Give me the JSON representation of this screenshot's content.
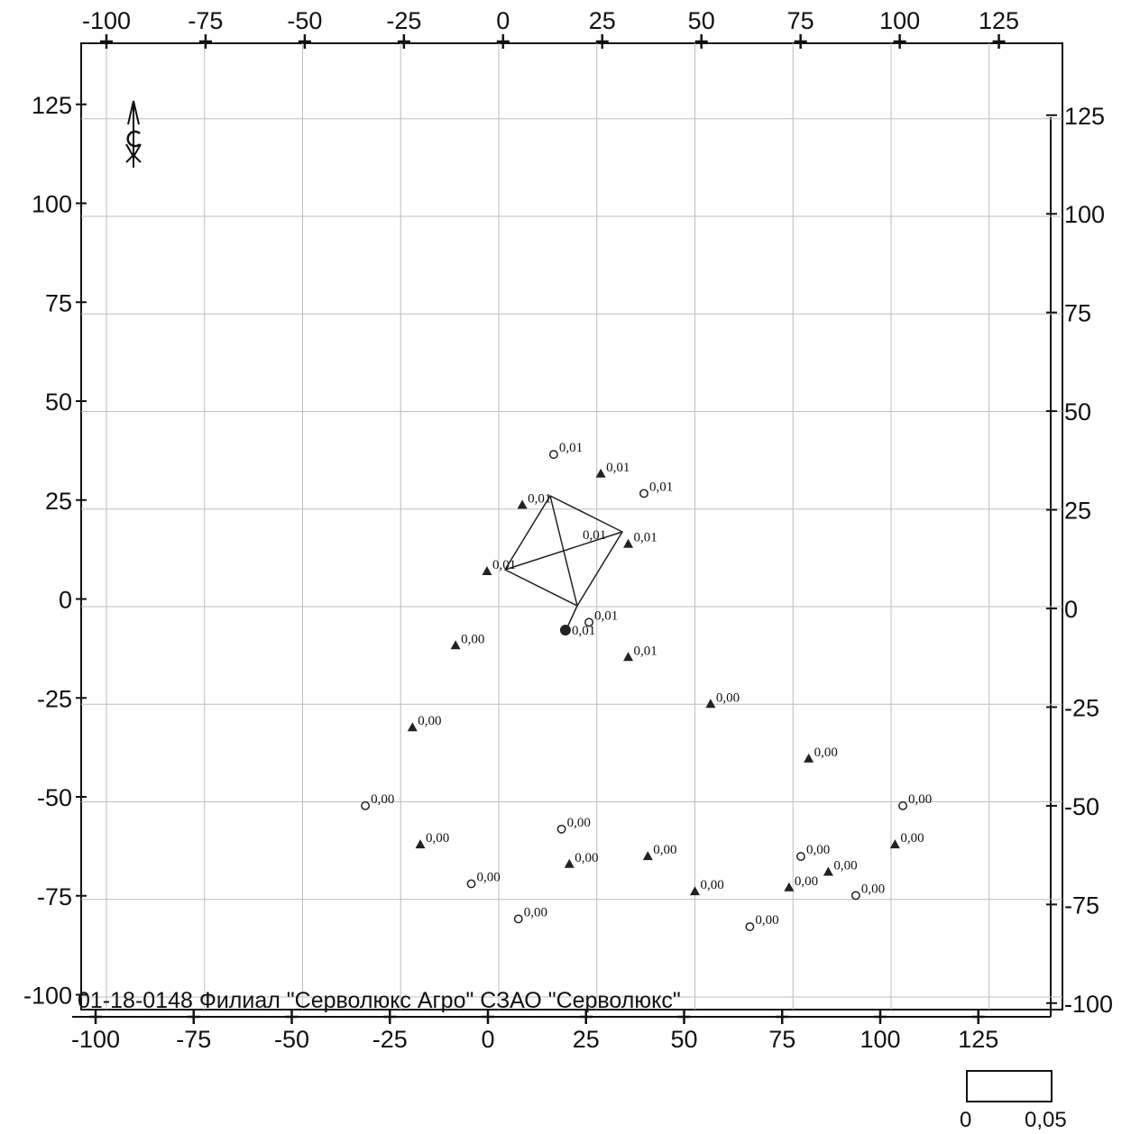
{
  "map": {
    "caption": "01-18-0148 Филиал \"Серволюкс Агро\" СЗАО \"Серволюкс\"",
    "axes": {
      "top_ticks": [
        "-100",
        "-75",
        "-50",
        "-25",
        "0",
        "25",
        "50",
        "75",
        "100",
        "125"
      ],
      "bottom_ticks": [
        "-100",
        "-75",
        "-50",
        "-25",
        "0",
        "25",
        "50",
        "75",
        "100",
        "125"
      ],
      "left_ticks": [
        "125",
        "100",
        "75",
        "50",
        "25",
        "0",
        "-25",
        "-50",
        "-75",
        "-100"
      ],
      "right_ticks": [
        "125",
        "100",
        "75",
        "50",
        "25",
        "0",
        "-25",
        "-50",
        "-75",
        "-100"
      ]
    },
    "scale_bar": {
      "min": "0",
      "max": "0,05"
    },
    "points": [
      {
        "x": 14,
        "y": 39,
        "shape": "circle",
        "label": "0,01"
      },
      {
        "x": 26,
        "y": 34,
        "shape": "triangle",
        "label": "0,01"
      },
      {
        "x": 37,
        "y": 29,
        "shape": "circle",
        "label": "0,01"
      },
      {
        "x": 6,
        "y": 26,
        "shape": "triangle",
        "label": "0,01"
      },
      {
        "x": 33,
        "y": 16,
        "shape": "triangle",
        "label": "0,01"
      },
      {
        "x": -3,
        "y": 9,
        "shape": "triangle",
        "label": "0,01"
      },
      {
        "x": 23,
        "y": -4,
        "shape": "circle",
        "label": "0,01"
      },
      {
        "x": -11,
        "y": -10,
        "shape": "triangle",
        "label": "0,00"
      },
      {
        "x": 33,
        "y": -13,
        "shape": "triangle",
        "label": "0,01"
      },
      {
        "x": 54,
        "y": -25,
        "shape": "triangle",
        "label": "0,00"
      },
      {
        "x": -22,
        "y": -31,
        "shape": "triangle",
        "label": "0,00"
      },
      {
        "x": 79,
        "y": -39,
        "shape": "triangle",
        "label": "0,00"
      },
      {
        "x": -34,
        "y": -51,
        "shape": "circle",
        "label": "0,00"
      },
      {
        "x": 103,
        "y": -51,
        "shape": "circle",
        "label": "0,00"
      },
      {
        "x": 16,
        "y": -57,
        "shape": "circle",
        "label": "0,00"
      },
      {
        "x": -20,
        "y": -61,
        "shape": "triangle",
        "label": "0,00"
      },
      {
        "x": 101,
        "y": -61,
        "shape": "triangle",
        "label": "0,00"
      },
      {
        "x": 38,
        "y": -64,
        "shape": "triangle",
        "label": "0,00"
      },
      {
        "x": 77,
        "y": -64,
        "shape": "circle",
        "label": "0,00"
      },
      {
        "x": 18,
        "y": -66,
        "shape": "triangle",
        "label": "0,00"
      },
      {
        "x": 84,
        "y": -68,
        "shape": "triangle",
        "label": "0,00"
      },
      {
        "x": -7,
        "y": -71,
        "shape": "circle",
        "label": "0,00"
      },
      {
        "x": 74,
        "y": -72,
        "shape": "triangle",
        "label": "0,00"
      },
      {
        "x": 50,
        "y": -73,
        "shape": "triangle",
        "label": "0,00"
      },
      {
        "x": 91,
        "y": -74,
        "shape": "circle",
        "label": "0,00"
      },
      {
        "x": 5,
        "y": -80,
        "shape": "circle",
        "label": "0,00"
      },
      {
        "x": 64,
        "y": -82,
        "shape": "circle",
        "label": "0,00"
      }
    ],
    "source": {
      "x": 17,
      "y": -6,
      "label": "0,01"
    },
    "contour_label": "0,01"
  }
}
